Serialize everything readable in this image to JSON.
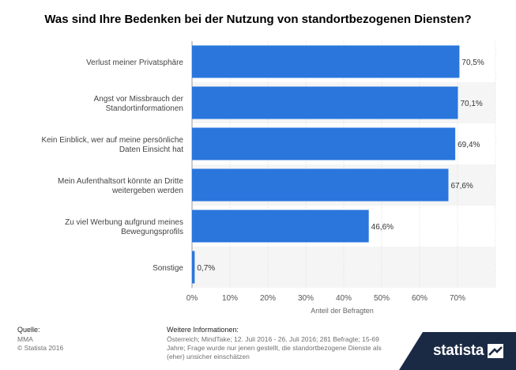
{
  "chart_data": {
    "type": "bar",
    "orientation": "horizontal",
    "title": "Was sind Ihre Bedenken bei der Nutzung von standortbezogenen Diensten?",
    "categories": [
      [
        "Verlust meiner Privatsphäre"
      ],
      [
        "Angst vor Missbrauch der",
        "Standortinformationen"
      ],
      [
        "Kein Einblick, wer auf meine persönliche",
        "Daten Einsicht hat"
      ],
      [
        "Mein Aufenthaltsort könnte an Dritte",
        "weitergeben werden"
      ],
      [
        "Zu viel Werbung aufgrund meines",
        "Bewegungsprofils"
      ],
      [
        "Sonstige"
      ]
    ],
    "values": [
      70.5,
      70.1,
      69.4,
      67.6,
      46.6,
      0.7
    ],
    "value_labels": [
      "70,5%",
      "70,1%",
      "69,4%",
      "67,6%",
      "46,6%",
      "0,7%"
    ],
    "xlim": [
      0,
      80
    ],
    "xticks": [
      "0%",
      "10%",
      "20%",
      "30%",
      "40%",
      "50%",
      "60%",
      "70%"
    ],
    "xlabel": "Anteil der Befragten",
    "bar_color": "#2a76dd"
  },
  "footer": {
    "source_label": "Quelle:",
    "source_name": "MMA",
    "copyright": "© Statista 2016",
    "info_label": "Weitere Informationen:",
    "info_line1": "Österreich; MindTake; 12. Juli 2016 - 26. Juli 2016; 281 Befragte; 15-69",
    "info_line2": "Jahre; Frage wurde nur jenen gestellt, die standortbezogene Dienste als",
    "info_line3": "(eher) unsicher einschätzen"
  },
  "brand": {
    "name": "statista",
    "icon": "statista-logo-icon"
  }
}
